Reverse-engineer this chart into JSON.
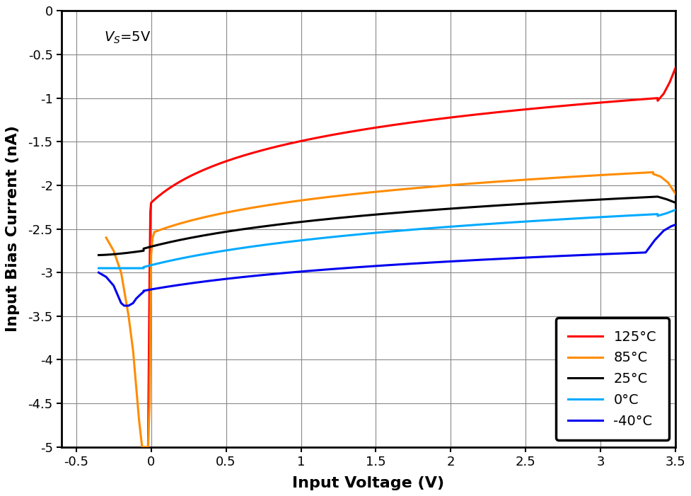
{
  "xlabel": "Input Voltage (V)",
  "ylabel": "Input Bias Current (nA)",
  "annotation": "V$_S$=5V",
  "xlim": [
    -0.6,
    3.5
  ],
  "ylim": [
    -5.0,
    0.0
  ],
  "xticks": [
    -0.5,
    0.0,
    0.5,
    1.0,
    1.5,
    2.0,
    2.5,
    3.0,
    3.5
  ],
  "yticks": [
    0,
    -0.5,
    -1.0,
    -1.5,
    -2.0,
    -2.5,
    -3.0,
    -3.5,
    -4.0,
    -4.5,
    -5.0
  ],
  "legend_labels": [
    "125°C",
    "85°C",
    "25°C",
    "0°C",
    "-40°C"
  ],
  "colors": {
    "125C": "#ff0000",
    "85C": "#ff8c00",
    "25C": "#000000",
    "0C": "#00aaff",
    "m40C": "#0000ee"
  },
  "linewidth": 2.2,
  "grid_color": "#888888",
  "background_color": "#ffffff"
}
